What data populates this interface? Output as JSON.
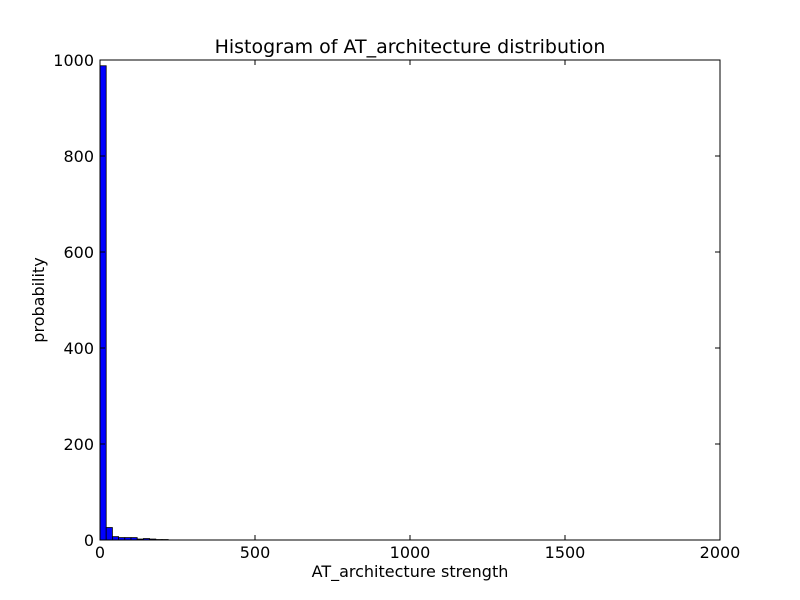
{
  "chart_data": {
    "type": "bar",
    "title": "Histogram of AT_architecture  distribution",
    "xlabel": "AT_architecture  strength",
    "ylabel": "probability",
    "xlim": [
      0,
      2000
    ],
    "ylim": [
      0,
      1000
    ],
    "xticks": [
      0,
      500,
      1000,
      1500,
      2000
    ],
    "yticks": [
      0,
      200,
      400,
      600,
      800,
      1000
    ],
    "xtick_labels": [
      "0",
      "500",
      "1000",
      "1500",
      "2000"
    ],
    "ytick_labels": [
      "0",
      "200",
      "400",
      "600",
      "800",
      "1000"
    ],
    "bin_width": 20,
    "bins": [
      {
        "x": 0,
        "value": 988
      },
      {
        "x": 20,
        "value": 26
      },
      {
        "x": 40,
        "value": 7
      },
      {
        "x": 60,
        "value": 5
      },
      {
        "x": 80,
        "value": 5
      },
      {
        "x": 100,
        "value": 5
      },
      {
        "x": 120,
        "value": 2
      },
      {
        "x": 140,
        "value": 3
      },
      {
        "x": 160,
        "value": 2
      },
      {
        "x": 180,
        "value": 1
      },
      {
        "x": 200,
        "value": 1
      }
    ],
    "grid": false,
    "colors": {
      "bar_fill": "#0000ff",
      "bar_edge": "#000000",
      "axes": "#000000"
    }
  }
}
